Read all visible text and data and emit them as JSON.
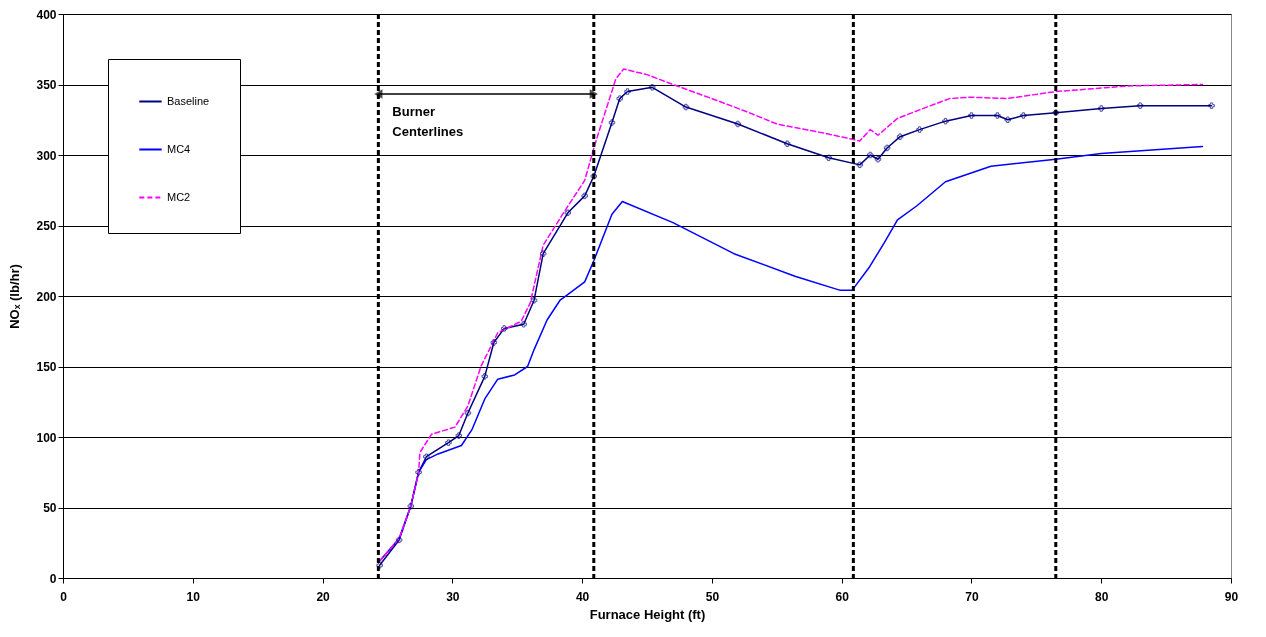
{
  "chart_data": {
    "type": "line",
    "xlabel": "Furnace Height (ft)",
    "ylabel": "NOₓ (lb/hr)",
    "xlim": [
      0,
      90
    ],
    "xticks": [
      0,
      10,
      20,
      30,
      40,
      50,
      60,
      70,
      80,
      90
    ],
    "ylim": [
      0,
      400
    ],
    "yticks": [
      0,
      50,
      100,
      150,
      200,
      250,
      300,
      350,
      400
    ],
    "grid": "y",
    "legend": "top left",
    "series": [
      {
        "name": "Baseline",
        "color": "#000080",
        "marker": "cross",
        "line_style": "solid",
        "x": [
          24.4,
          25.9,
          26.8,
          27.4,
          28,
          29.7,
          30.5,
          31.2,
          32.5,
          33.2,
          34,
          35.5,
          36.3,
          37,
          38.9,
          40.2,
          40.9,
          42.3,
          42.9,
          43.5,
          45.4,
          48,
          52,
          55.8,
          59,
          61.4,
          62.2,
          62.8,
          63.5,
          64.5,
          66,
          68,
          70,
          72,
          72.8,
          74,
          76.5,
          80,
          83,
          88.5
        ],
        "values": [
          9,
          27,
          51,
          75,
          86,
          96,
          101,
          117,
          143,
          167,
          177,
          180,
          197,
          230,
          259,
          271,
          285,
          323,
          340,
          345,
          348,
          334,
          322,
          308,
          298,
          293,
          300,
          297,
          305,
          313,
          318,
          324,
          328,
          328,
          325,
          328,
          330,
          333,
          335,
          335
        ]
      },
      {
        "name": "MC4",
        "color": "#0000ff",
        "marker": "none",
        "line_style": "solid",
        "x": [
          24.4,
          25.9,
          26.8,
          27.4,
          28,
          28.9,
          30.7,
          31.5,
          32.5,
          33.5,
          34.8,
          35.8,
          36.3,
          37.3,
          38.3,
          38.6,
          40.2,
          40.9,
          42.3,
          43.1,
          47,
          51.7,
          56.4,
          59.9,
          60.8,
          62.1,
          63.3,
          64.3,
          65.8,
          68,
          71.5,
          76.5,
          80,
          87.8
        ],
        "values": [
          12,
          28,
          51,
          75,
          84,
          88,
          94,
          105,
          127,
          141,
          144,
          150,
          162,
          183,
          197,
          199,
          210,
          225,
          258,
          267,
          252,
          230,
          214,
          204,
          204,
          220,
          238,
          254,
          264,
          281,
          292,
          297,
          301,
          306
        ]
      },
      {
        "name": "MC2",
        "color": "#ff00ff",
        "marker": "none",
        "line_style": "dashed",
        "x": [
          24.4,
          25.9,
          26.8,
          27.4,
          27.5,
          28.4,
          30.2,
          31.2,
          32.2,
          33.5,
          35.3,
          36,
          37,
          38.5,
          40.2,
          41,
          42.6,
          43.2,
          45,
          47,
          50,
          52.6,
          55,
          58.9,
          61.4,
          62.2,
          62.8,
          64.3,
          66,
          68.3,
          70,
          72.7,
          76.5,
          82.1,
          87.8
        ],
        "values": [
          12,
          28,
          51,
          75,
          89,
          102,
          107,
          122,
          150,
          174,
          182,
          195,
          236,
          258,
          282,
          308,
          354,
          361,
          357,
          350,
          340,
          331,
          322,
          315,
          310,
          318,
          314,
          326,
          332,
          340,
          341,
          340,
          345,
          349,
          350
        ]
      }
    ],
    "ref_lines": [
      {
        "axis": "x",
        "value": 24.3,
        "color": "#000000",
        "line_style": "dashed"
      },
      {
        "axis": "x",
        "value": 40.9,
        "color": "#000000",
        "line_style": "dashed"
      },
      {
        "axis": "x",
        "value": 60.9,
        "color": "#000000",
        "line_style": "dashed"
      },
      {
        "axis": "x",
        "value": 76.5,
        "color": "#000000",
        "line_style": "dashed"
      }
    ],
    "annotations": [
      "Burner Centerlines"
    ]
  }
}
